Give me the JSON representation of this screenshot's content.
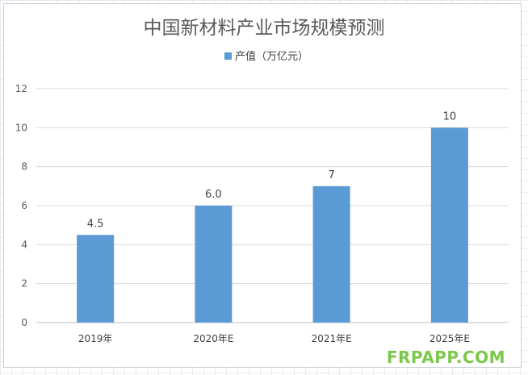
{
  "chart_data": {
    "type": "bar",
    "title": "中国新材料产业市场规模预测",
    "categories": [
      "2019年",
      "2020年E",
      "2021年E",
      "2025年E"
    ],
    "series": [
      {
        "name": "产值（万亿元）",
        "values": [
          4.5,
          6.0,
          7,
          10
        ],
        "data_labels": [
          "4.5",
          "6.0",
          "7",
          "10"
        ]
      }
    ],
    "xlabel": "",
    "ylabel": "",
    "ylim": [
      0,
      12
    ],
    "yticks": [
      0,
      2,
      4,
      6,
      8,
      10,
      12
    ],
    "grid": true,
    "legend_position": "top-center",
    "bar_color": "#5b9bd5"
  },
  "watermark": "FRPAPP.COM"
}
